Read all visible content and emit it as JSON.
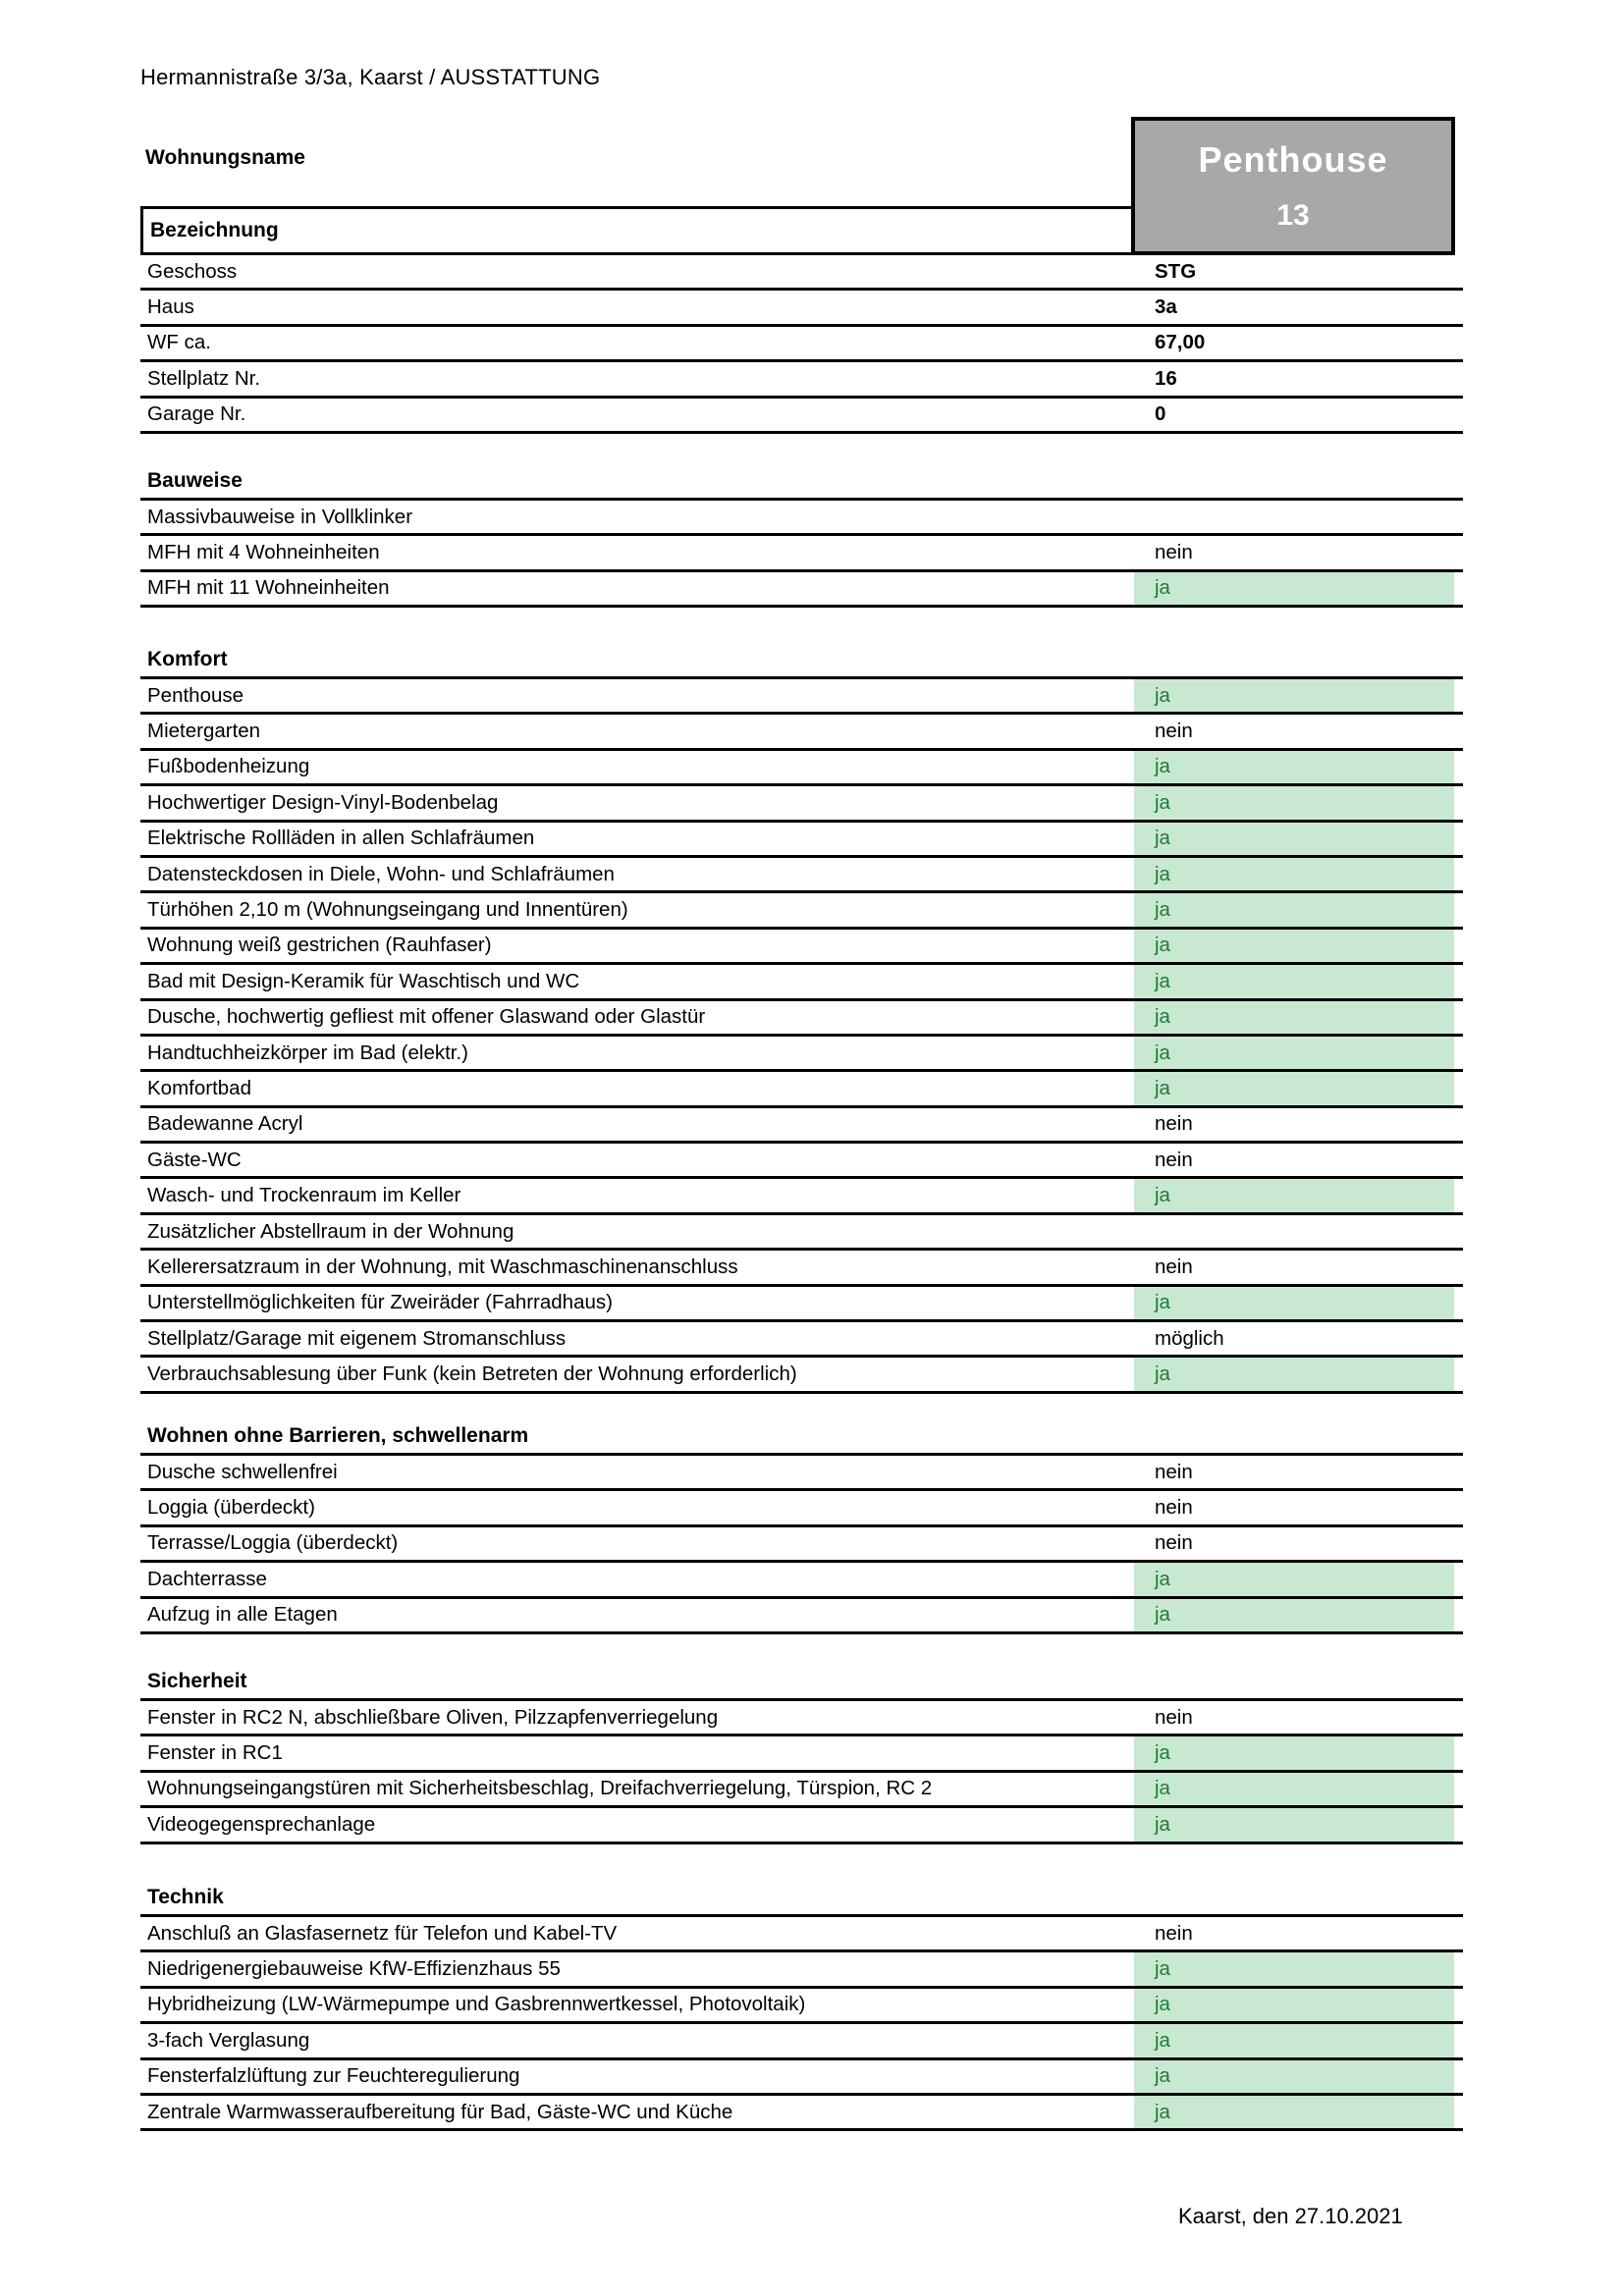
{
  "document": {
    "header": "Hermannistraße 3/3a, Kaarst / AUSSTATTUNG",
    "footer_date": "Kaarst, den 27.10.2021"
  },
  "apartment": {
    "wohnungsname_label": "Wohnungsname",
    "bezeichnung_label": "Bezeichnung",
    "name": "Penthouse",
    "number": "13",
    "info_rows": [
      {
        "label": "Geschoss",
        "value": "STG"
      },
      {
        "label": "Haus",
        "value": "3a"
      },
      {
        "label": "WF ca.",
        "value": "67,00"
      },
      {
        "label": "Stellplatz Nr.",
        "value": "16"
      },
      {
        "label": "Garage Nr.",
        "value": "0"
      }
    ]
  },
  "sections": [
    {
      "title": "Bauweise",
      "rows": [
        {
          "label": "Massivbauweise in Vollklinker",
          "value": "",
          "highlight": false
        },
        {
          "label": "MFH mit 4 Wohneinheiten",
          "value": "nein",
          "highlight": false
        },
        {
          "label": "MFH mit 11 Wohneinheiten",
          "value": "ja",
          "highlight": true
        }
      ]
    },
    {
      "title": "Komfort",
      "rows": [
        {
          "label": "Penthouse",
          "value": "ja",
          "highlight": true
        },
        {
          "label": "Mietergarten",
          "value": "nein",
          "highlight": false
        },
        {
          "label": "Fußbodenheizung",
          "value": "ja",
          "highlight": true
        },
        {
          "label": "Hochwertiger Design-Vinyl-Bodenbelag",
          "value": "ja",
          "highlight": true
        },
        {
          "label": "Elektrische Rollläden in allen Schlafräumen",
          "value": "ja",
          "highlight": true
        },
        {
          "label": "Datensteckdosen in Diele, Wohn- und Schlafräumen",
          "value": "ja",
          "highlight": true
        },
        {
          "label": "Türhöhen 2,10 m (Wohnungseingang und Innentüren)",
          "value": "ja",
          "highlight": true
        },
        {
          "label": "Wohnung weiß gestrichen (Rauhfaser)",
          "value": "ja",
          "highlight": true
        },
        {
          "label": "Bad mit Design-Keramik für Waschtisch und WC",
          "value": "ja",
          "highlight": true
        },
        {
          "label": "Dusche, hochwertig gefliest mit offener Glaswand oder Glastür",
          "value": "ja",
          "highlight": true
        },
        {
          "label": "Handtuchheizkörper im Bad (elektr.)",
          "value": "ja",
          "highlight": true
        },
        {
          "label": "Komfortbad",
          "value": "ja",
          "highlight": true
        },
        {
          "label": "Badewanne Acryl",
          "value": "nein",
          "highlight": false
        },
        {
          "label": "Gäste-WC",
          "value": "nein",
          "highlight": false
        },
        {
          "label": "Wasch- und Trockenraum im Keller",
          "value": "ja",
          "highlight": true
        },
        {
          "label": "Zusätzlicher Abstellraum in der Wohnung",
          "value": "",
          "highlight": false
        },
        {
          "label": "Kellerersatzraum in der Wohnung, mit Waschmaschinenanschluss",
          "value": "nein",
          "highlight": false
        },
        {
          "label": "Unterstellmöglichkeiten für Zweiräder (Fahrradhaus)",
          "value": "ja",
          "highlight": true
        },
        {
          "label": "Stellplatz/Garage mit eigenem Stromanschluss",
          "value": "möglich",
          "highlight": false
        },
        {
          "label": "Verbrauchsablesung über Funk (kein Betreten der Wohnung erforderlich)",
          "value": "ja",
          "highlight": true
        }
      ]
    },
    {
      "title": "Wohnen ohne Barrieren, schwellenarm",
      "rows": [
        {
          "label": "Dusche schwellenfrei",
          "value": "nein",
          "highlight": false
        },
        {
          "label": "Loggia (überdeckt)",
          "value": "nein",
          "highlight": false
        },
        {
          "label": "Terrasse/Loggia (überdeckt)",
          "value": "nein",
          "highlight": false
        },
        {
          "label": "Dachterrasse",
          "value": "ja",
          "highlight": true
        },
        {
          "label": "Aufzug in alle Etagen",
          "value": "ja",
          "highlight": true
        }
      ]
    },
    {
      "title": "Sicherheit",
      "rows": [
        {
          "label": "Fenster in RC2 N, abschließbare Oliven, Pilzzapfenverriegelung",
          "value": "nein",
          "highlight": false
        },
        {
          "label": "Fenster in RC1",
          "value": "ja",
          "highlight": true
        },
        {
          "label": "Wohnungseingangstüren mit Sicherheitsbeschlag, Dreifachverriegelung, Türspion, RC 2",
          "value": "ja",
          "highlight": true
        },
        {
          "label": "Videogegensprechanlage",
          "value": "ja",
          "highlight": true
        }
      ]
    },
    {
      "title": "Technik",
      "rows": [
        {
          "label": "Anschluß an Glasfasernetz für Telefon und Kabel-TV",
          "value": "nein",
          "highlight": false
        },
        {
          "label": "Niedrigenergiebauweise KfW-Effizienzhaus 55",
          "value": "ja",
          "highlight": true
        },
        {
          "label": "Hybridheizung (LW-Wärmepumpe und Gasbrennwertkessel, Photovoltaik)",
          "value": "ja",
          "highlight": true
        },
        {
          "label": "3-fach Verglasung",
          "value": "ja",
          "highlight": true
        },
        {
          "label": "Fensterfalzlüftung zur Feuchteregulierung",
          "value": "ja",
          "highlight": true
        },
        {
          "label": "Zentrale Warmwasseraufbereitung für Bad, Gäste-WC und Küche",
          "value": "ja",
          "highlight": true
        }
      ]
    }
  ],
  "colors": {
    "highlight_bg": "#c9e8d2",
    "highlight_text": "#1e7c33",
    "name_box_bg": "#a8a8a8",
    "name_box_text": "#ffffff"
  }
}
